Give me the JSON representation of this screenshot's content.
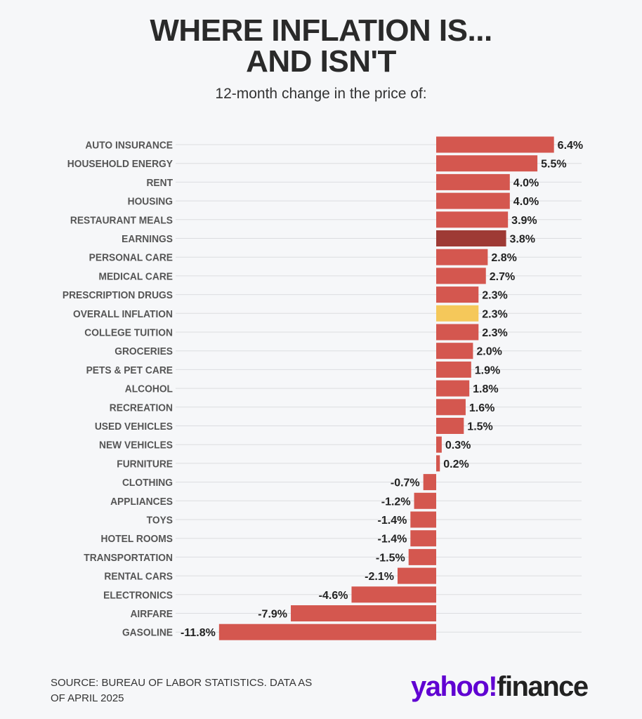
{
  "chart_data": {
    "type": "bar",
    "orientation": "horizontal",
    "title": "WHERE INFLATION IS... AND ISN'T",
    "title_lines": [
      "WHERE INFLATION IS...",
      "AND ISN'T"
    ],
    "subtitle": "12-month change in the price of:",
    "categories": [
      "AUTO INSURANCE",
      "HOUSEHOLD ENERGY",
      "RENT",
      "HOUSING",
      "RESTAURANT MEALS",
      "EARNINGS",
      "PERSONAL CARE",
      "MEDICAL CARE",
      "PRESCRIPTION DRUGS",
      "OVERALL INFLATION",
      "COLLEGE TUITION",
      "GROCERIES",
      "PETS & PET CARE",
      "ALCOHOL",
      "RECREATION",
      "USED VEHICLES",
      "NEW VEHICLES",
      "FURNITURE",
      "CLOTHING",
      "APPLIANCES",
      "TOYS",
      "HOTEL ROOMS",
      "TRANSPORTATION",
      "RENTAL CARS",
      "ELECTRONICS",
      "AIRFARE",
      "GASOLINE"
    ],
    "values": [
      6.4,
      5.5,
      4.0,
      4.0,
      3.9,
      3.8,
      2.8,
      2.7,
      2.3,
      2.3,
      2.3,
      2.0,
      1.9,
      1.8,
      1.6,
      1.5,
      0.3,
      0.2,
      -0.7,
      -1.2,
      -1.4,
      -1.4,
      -1.5,
      -2.1,
      -4.6,
      -7.9,
      -11.8
    ],
    "data_labels": [
      "6.4%",
      "5.5%",
      "4.0%",
      "4.0%",
      "3.9%",
      "3.8%",
      "2.8%",
      "2.7%",
      "2.3%",
      "2.3%",
      "2.3%",
      "2.0%",
      "1.9%",
      "1.8%",
      "1.6%",
      "1.5%",
      "0.3%",
      "0.2%",
      "-0.7%",
      "-1.2%",
      "-1.4%",
      "-1.4%",
      "-1.5%",
      "-2.1%",
      "-4.6%",
      "-7.9%",
      "-11.8%"
    ],
    "unit": "%",
    "xlim": [
      -12,
      8
    ],
    "grid": true,
    "colors": {
      "default": "#d4574f",
      "EARNINGS": "#9e3a35",
      "OVERALL INFLATION": "#f5c85a"
    }
  },
  "footer": {
    "source_lines": [
      "SOURCE: BUREAU OF LABOR STATISTICS. DATA AS",
      "OF APRIL 2025"
    ],
    "logo": "yahoo!finance",
    "logo_parts": [
      "yahoo!",
      "finance"
    ]
  }
}
